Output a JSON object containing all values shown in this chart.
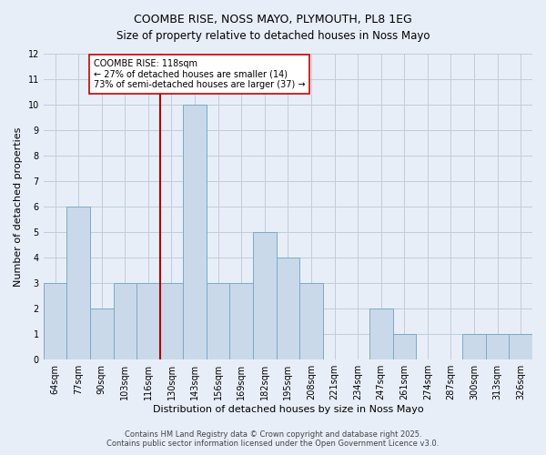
{
  "title": "COOMBE RISE, NOSS MAYO, PLYMOUTH, PL8 1EG",
  "subtitle": "Size of property relative to detached houses in Noss Mayo",
  "xlabel": "Distribution of detached houses by size in Noss Mayo",
  "ylabel": "Number of detached properties",
  "bin_labels": [
    "64sqm",
    "77sqm",
    "90sqm",
    "103sqm",
    "116sqm",
    "130sqm",
    "143sqm",
    "156sqm",
    "169sqm",
    "182sqm",
    "195sqm",
    "208sqm",
    "221sqm",
    "234sqm",
    "247sqm",
    "261sqm",
    "274sqm",
    "287sqm",
    "300sqm",
    "313sqm",
    "326sqm"
  ],
  "bar_values": [
    3,
    6,
    2,
    3,
    3,
    3,
    10,
    3,
    3,
    5,
    4,
    3,
    0,
    0,
    2,
    1,
    0,
    0,
    1,
    1,
    1
  ],
  "bar_color": "#c9d9ea",
  "bar_edge_color": "#7aaac8",
  "vline_index": 4.5,
  "vline_color": "#aa0000",
  "ylim": [
    0,
    12
  ],
  "yticks": [
    0,
    1,
    2,
    3,
    4,
    5,
    6,
    7,
    8,
    9,
    10,
    11,
    12
  ],
  "annotation_title": "COOMBE RISE: 118sqm",
  "annotation_line1": "← 27% of detached houses are smaller (14)",
  "annotation_line2": "73% of semi-detached houses are larger (37) →",
  "annotation_box_color": "white",
  "annotation_edge_color": "#cc0000",
  "background_color": "#e8eef8",
  "grid_color": "#c0ccdc",
  "footer_line1": "Contains HM Land Registry data © Crown copyright and database right 2025.",
  "footer_line2": "Contains public sector information licensed under the Open Government Licence v3.0.",
  "title_fontsize": 9,
  "subtitle_fontsize": 8.5,
  "axis_label_fontsize": 8,
  "tick_fontsize": 7,
  "footer_fontsize": 6
}
